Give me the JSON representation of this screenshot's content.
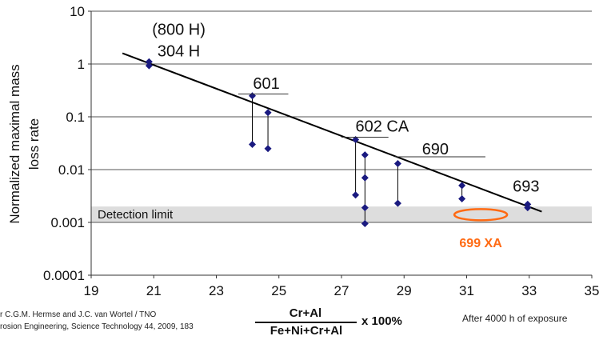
{
  "chart_data": {
    "type": "scatter",
    "yscale": "log",
    "xlim": [
      19,
      35
    ],
    "ylim": [
      0.0001,
      10
    ],
    "x_ticks": [
      "19",
      "21",
      "23",
      "25",
      "27",
      "29",
      "31",
      "33",
      "35"
    ],
    "y_ticks": [
      "0.0001",
      "0.001",
      "0.01",
      "0.1",
      "1",
      "10"
    ],
    "ylabel": "Normalized maximal mass loss rate",
    "xlabel_numerator": "Cr+Al",
    "xlabel_denominator": "Fe+Ni+Cr+Al",
    "xlabel_suffix": "x 100%",
    "points": [
      {
        "x": 20.85,
        "y": 1.1
      },
      {
        "x": 20.85,
        "y": 0.93
      },
      {
        "x": 24.15,
        "y": 0.25
      },
      {
        "x": 24.15,
        "y": 0.03
      },
      {
        "x": 24.65,
        "y": 0.12
      },
      {
        "x": 24.65,
        "y": 0.025
      },
      {
        "x": 27.45,
        "y": 0.037
      },
      {
        "x": 27.45,
        "y": 0.0033
      },
      {
        "x": 27.75,
        "y": 0.019
      },
      {
        "x": 27.75,
        "y": 0.007
      },
      {
        "x": 27.75,
        "y": 0.0019
      },
      {
        "x": 27.75,
        "y": 0.00095
      },
      {
        "x": 28.8,
        "y": 0.013
      },
      {
        "x": 28.8,
        "y": 0.0023
      },
      {
        "x": 30.85,
        "y": 0.005
      },
      {
        "x": 30.85,
        "y": 0.0028
      },
      {
        "x": 32.95,
        "y": 0.0022
      },
      {
        "x": 32.95,
        "y": 0.0019
      }
    ],
    "ranges": [
      {
        "x": 24.15,
        "y_low": 0.03,
        "y_high": 0.25
      },
      {
        "x": 24.65,
        "y_low": 0.025,
        "y_high": 0.12
      },
      {
        "x": 27.45,
        "y_low": 0.0033,
        "y_high": 0.037
      },
      {
        "x": 27.75,
        "y_low": 0.00095,
        "y_high": 0.019
      },
      {
        "x": 28.8,
        "y_low": 0.0023,
        "y_high": 0.013
      },
      {
        "x": 30.85,
        "y_low": 0.0028,
        "y_high": 0.005
      }
    ],
    "trend_line": {
      "x": [
        20,
        33.4
      ],
      "y": [
        1.6,
        0.0016
      ]
    },
    "detection_limit": {
      "label": "Detection limit",
      "y_low": 0.001,
      "y_high": 0.002
    },
    "alloy_labels": [
      {
        "text": "(800 H)",
        "x": 21.8,
        "y": 3.6
      },
      {
        "text": "304 H",
        "x": 21.8,
        "y": 1.4
      },
      {
        "text": "601",
        "x": 24.6,
        "y": 0.34
      },
      {
        "text": "602 CA",
        "x": 28.3,
        "y": 0.052
      },
      {
        "text": "690",
        "x": 30.0,
        "y": 0.0195
      },
      {
        "text": "693",
        "x": 32.9,
        "y": 0.0038
      }
    ],
    "label_underlines": [
      {
        "x1": 23.7,
        "x2": 25.3,
        "y": 0.27
      },
      {
        "x1": 27.0,
        "x2": 28.5,
        "y": 0.041
      },
      {
        "x1": 28.7,
        "x2": 31.6,
        "y": 0.0175
      }
    ],
    "highlight": {
      "label": "699 XA",
      "x": 31.45,
      "y": 0.0014,
      "color": "#ff6a13"
    },
    "colors": {
      "marker": "#1a1a80",
      "line": "#000000",
      "band": "#dddddd"
    }
  },
  "footnotes": {
    "source_line_1": "r C.G.M. Hermse and J.C. van Wortel / TNO",
    "source_line_2": "rosion Engineering, Science Technology 44, 2009, 183",
    "exposure": "After 4000 h of exposure"
  }
}
